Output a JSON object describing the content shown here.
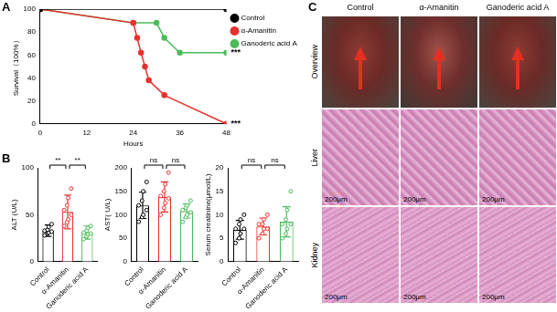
{
  "chart_data": [
    {
      "type": "line",
      "panel_label": "A",
      "x_label": "Hours",
      "y_label": "Survival（100%）",
      "xlim": [
        0,
        48
      ],
      "xticks": [
        0,
        12,
        24,
        36,
        48
      ],
      "ylim": [
        0,
        100
      ],
      "yticks": [
        0,
        20,
        40,
        60,
        80,
        100
      ],
      "grid": false,
      "legend": "right",
      "series": [
        {
          "name": "Control",
          "color": "#000000",
          "marker": "circle",
          "x": [
            0,
            48
          ],
          "values": [
            100,
            100
          ]
        },
        {
          "name": "α-Amanitin",
          "color": "#e8312f",
          "marker": "circle",
          "x": [
            0,
            24,
            25,
            26,
            27,
            28,
            32,
            48
          ],
          "values": [
            100,
            88,
            75,
            62,
            50,
            38,
            25,
            0
          ]
        },
        {
          "name": "Ganoderic acid A",
          "color": "#4cbb5c",
          "marker": "circle",
          "x": [
            0,
            24,
            30,
            32,
            36,
            48
          ],
          "values": [
            100,
            88,
            88,
            75,
            62,
            62
          ]
        }
      ],
      "annotations": [
        {
          "text": "***",
          "series": "Ganoderic acid A"
        },
        {
          "text": "***",
          "series": "α-Amanitin"
        }
      ]
    },
    {
      "type": "bar",
      "panel_label": "B",
      "y_label": "ALT (U/L)",
      "categories": [
        "Control",
        "α-Amanitin",
        "Ganoderic acid A"
      ],
      "values": [
        33,
        53,
        31
      ],
      "errors": [
        6,
        18,
        7
      ],
      "points": [
        [
          28,
          30,
          31,
          32,
          33,
          34,
          37,
          40
        ],
        [
          38,
          42,
          45,
          50,
          55,
          60,
          68,
          78
        ],
        [
          24,
          27,
          29,
          30,
          31,
          33,
          36,
          38
        ]
      ],
      "colors": [
        "#000000",
        "#e8312f",
        "#4cbb5c"
      ],
      "ylim": [
        0,
        100
      ],
      "yticks": [
        0,
        50,
        100
      ],
      "grid": false,
      "comparisons": [
        {
          "groups": [
            "Control",
            "α-Amanitin"
          ],
          "label": "**"
        },
        {
          "groups": [
            "α-Amanitin",
            "Ganoderic acid A"
          ],
          "label": "**"
        }
      ]
    },
    {
      "type": "bar",
      "y_label": "AST( U/L)",
      "categories": [
        "Control",
        "α-Amanitin",
        "Ganoderic acid A"
      ],
      "values": [
        120,
        138,
        108
      ],
      "errors": [
        28,
        32,
        15
      ],
      "points": [
        [
          85,
          95,
          100,
          110,
          120,
          130,
          150,
          170
        ],
        [
          100,
          115,
          125,
          135,
          140,
          150,
          165,
          190
        ],
        [
          85,
          95,
          100,
          105,
          110,
          115,
          120,
          130
        ]
      ],
      "colors": [
        "#000000",
        "#e8312f",
        "#4cbb5c"
      ],
      "ylim": [
        0,
        200
      ],
      "yticks": [
        0,
        50,
        100,
        150,
        200
      ],
      "grid": false,
      "comparisons": [
        {
          "groups": [
            "Control",
            "α-Amanitin"
          ],
          "label": "ns"
        },
        {
          "groups": [
            "α-Amanitin",
            "Ganoderic acid A"
          ],
          "label": "ns"
        }
      ]
    },
    {
      "type": "bar",
      "y_label": "Serum creatinine(μmol/L)",
      "categories": [
        "Control",
        "α-Amanitin",
        "Ganoderic acid A"
      ],
      "values": [
        6.8,
        7.5,
        8.5
      ],
      "errors": [
        2,
        1.8,
        3.2
      ],
      "points": [
        [
          4,
          5,
          6,
          7,
          7,
          8,
          9,
          10
        ],
        [
          5,
          6,
          7,
          7,
          8,
          8,
          9,
          10
        ],
        [
          5,
          6,
          7,
          8,
          8,
          9,
          11,
          15
        ]
      ],
      "colors": [
        "#000000",
        "#e8312f",
        "#4cbb5c"
      ],
      "ylim": [
        0,
        20
      ],
      "yticks": [
        0,
        5,
        10,
        15,
        20
      ],
      "grid": false,
      "comparisons": [
        {
          "groups": [
            "Control",
            "α-Amanitin"
          ],
          "label": "ns"
        },
        {
          "groups": [
            "α-Amanitin",
            "Ganoderic acid A"
          ],
          "label": "ns"
        }
      ]
    }
  ],
  "panel_c": {
    "panel_label": "C",
    "columns": [
      "Control",
      "α-Amanitin",
      "Ganoderic acid A"
    ],
    "rows": [
      "Overview",
      "Liver",
      "Kidney"
    ],
    "scale_bar": "200μm",
    "scale_bar_rows": [
      "Liver",
      "Kidney"
    ]
  }
}
